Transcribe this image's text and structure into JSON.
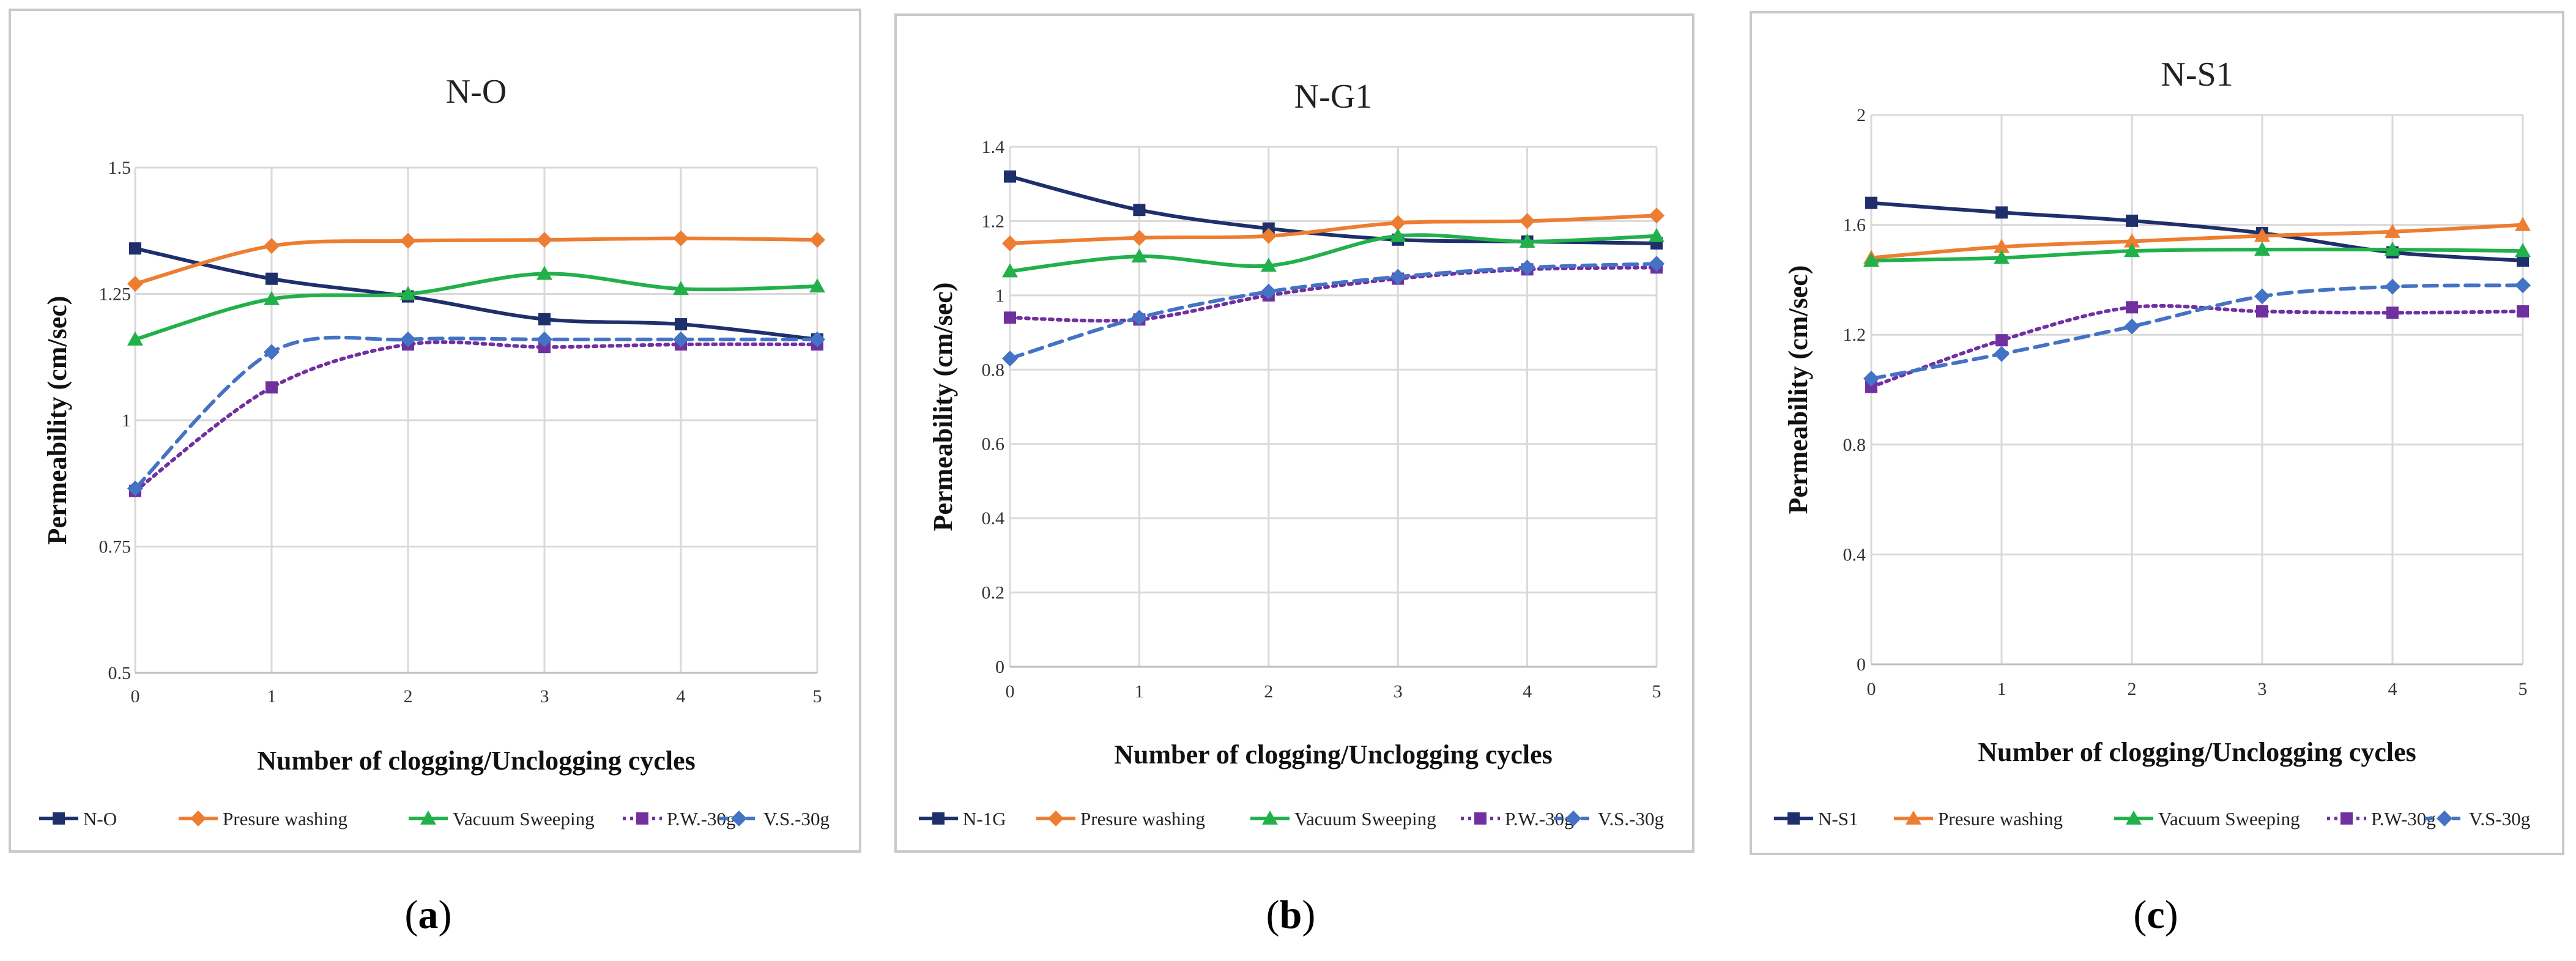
{
  "charts": [
    {
      "title": "N-O",
      "panel_label": "a",
      "xlabel": "Number of clogging/Unclogging cycles",
      "ylabel": "Permeability (cm/sec)",
      "x": [
        0,
        1,
        2,
        3,
        4,
        5
      ],
      "ylim": [
        0.5,
        1.5
      ],
      "yticks": [
        0.5,
        0.75,
        1,
        1.25,
        1.5
      ],
      "ytick_labels": [
        "0.5",
        "0.75",
        "1",
        "1.25",
        "1.5"
      ],
      "series": [
        {
          "name": "N-O",
          "color": "#1f2f6b",
          "style": "solid",
          "marker": "square",
          "values": [
            1.34,
            1.28,
            1.245,
            1.2,
            1.19,
            1.16
          ]
        },
        {
          "name": "Presure washing",
          "color": "#ed7d31",
          "style": "solid",
          "marker": "diamond",
          "values": [
            1.27,
            1.345,
            1.355,
            1.357,
            1.36,
            1.357
          ]
        },
        {
          "name": "Vacuum Sweeping",
          "color": "#22b04b",
          "style": "solid",
          "marker": "triangle",
          "values": [
            1.16,
            1.24,
            1.25,
            1.29,
            1.26,
            1.265
          ]
        },
        {
          "name": "P.W.-30g",
          "color": "#7030a0",
          "style": "dotted",
          "marker": "square",
          "values": [
            0.86,
            1.065,
            1.15,
            1.145,
            1.15,
            1.15
          ]
        },
        {
          "name": "V.S.-30g",
          "color": "#4472c4",
          "style": "dashed",
          "marker": "diamond",
          "values": [
            0.865,
            1.135,
            1.16,
            1.16,
            1.16,
            1.16
          ]
        }
      ]
    },
    {
      "title": "N-G1",
      "panel_label": "b",
      "xlabel": "Number of clogging/Unclogging cycles",
      "ylabel": "Permeability (cm/sec)",
      "x": [
        0,
        1,
        2,
        3,
        4,
        5
      ],
      "ylim": [
        0,
        1.4
      ],
      "yticks": [
        0,
        0.2,
        0.4,
        0.6,
        0.8,
        1,
        1.2,
        1.4
      ],
      "ytick_labels": [
        "0",
        "0.2",
        "0.4",
        "0.6",
        "0.8",
        "1",
        "1.2",
        "1.4"
      ],
      "series": [
        {
          "name": "N-1G",
          "color": "#1f2f6b",
          "style": "solid",
          "marker": "square",
          "values": [
            1.32,
            1.23,
            1.18,
            1.15,
            1.145,
            1.14
          ]
        },
        {
          "name": "Presure washing",
          "color": "#ed7d31",
          "style": "solid",
          "marker": "diamond",
          "values": [
            1.14,
            1.155,
            1.16,
            1.195,
            1.2,
            1.215
          ]
        },
        {
          "name": "Vacuum Sweeping",
          "color": "#22b04b",
          "style": "solid",
          "marker": "triangle",
          "values": [
            1.065,
            1.105,
            1.08,
            1.16,
            1.145,
            1.16
          ]
        },
        {
          "name": "P.W.-30g",
          "color": "#7030a0",
          "style": "dotted",
          "marker": "square",
          "values": [
            0.94,
            0.935,
            1.0,
            1.045,
            1.07,
            1.075
          ]
        },
        {
          "name": "V.S.-30g",
          "color": "#4472c4",
          "style": "dashed",
          "marker": "diamond",
          "values": [
            0.83,
            0.94,
            1.01,
            1.05,
            1.075,
            1.085
          ]
        }
      ]
    },
    {
      "title": "N-S1",
      "panel_label": "c",
      "xlabel": "Number of clogging/Unclogging cycles",
      "ylabel": "Permeability (cm/sec)",
      "x": [
        0,
        1,
        2,
        3,
        4,
        5
      ],
      "ylim": [
        0,
        2
      ],
      "yticks": [
        0,
        0.4,
        0.8,
        1.2,
        1.6,
        2
      ],
      "ytick_labels": [
        "0",
        "0.4",
        "0.8",
        "1.2",
        "1.6",
        "2"
      ],
      "series": [
        {
          "name": "N-S1",
          "color": "#1f2f6b",
          "style": "solid",
          "marker": "square",
          "values": [
            1.68,
            1.645,
            1.615,
            1.57,
            1.5,
            1.47
          ]
        },
        {
          "name": "Presure washing",
          "color": "#ed7d31",
          "style": "solid",
          "marker": "triangle",
          "values": [
            1.48,
            1.52,
            1.54,
            1.56,
            1.575,
            1.6
          ]
        },
        {
          "name": "Vacuum Sweeping",
          "color": "#22b04b",
          "style": "solid",
          "marker": "triangle",
          "values": [
            1.47,
            1.48,
            1.505,
            1.51,
            1.51,
            1.505
          ]
        },
        {
          "name": "P.W-30g",
          "color": "#7030a0",
          "style": "dotted",
          "marker": "square",
          "values": [
            1.01,
            1.18,
            1.3,
            1.285,
            1.28,
            1.285
          ]
        },
        {
          "name": "V.S-30g",
          "color": "#4472c4",
          "style": "dashed",
          "marker": "diamond",
          "values": [
            1.04,
            1.13,
            1.23,
            1.34,
            1.375,
            1.38
          ]
        }
      ]
    }
  ]
}
